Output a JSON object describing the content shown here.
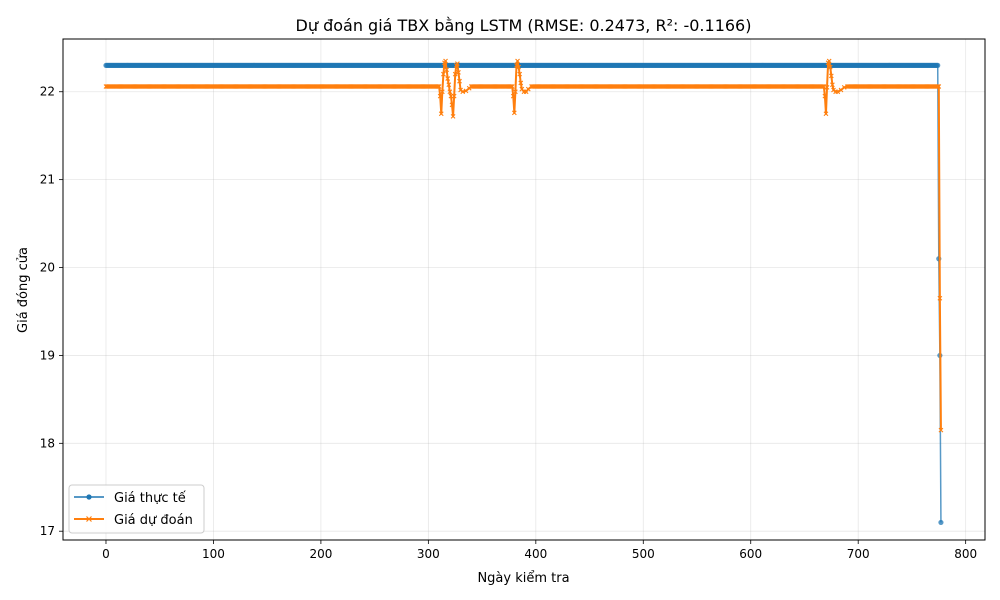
{
  "chart_data": {
    "type": "line",
    "title": "Dự đoán giá TBX bằng LSTM (RMSE: 0.2473, R²: -0.1166)",
    "xlabel": "Ngày kiểm tra",
    "ylabel": "Giá đóng cửa",
    "xlim": [
      -40,
      818
    ],
    "ylim": [
      16.9,
      22.6
    ],
    "xticks": [
      0,
      100,
      200,
      300,
      400,
      500,
      600,
      700,
      800
    ],
    "yticks": [
      17,
      18,
      19,
      20,
      21,
      22
    ],
    "grid": true,
    "legend_position": "lower-left",
    "series": [
      {
        "name": "Giá thực tế",
        "color": "#1f77b4",
        "marker": "circle",
        "segments": [
          {
            "x_start": 0,
            "x_end": 774,
            "y": 22.3
          }
        ],
        "points": [
          [
            774,
            22.3
          ],
          [
            775,
            20.1
          ],
          [
            776,
            19.0
          ],
          [
            777,
            17.1
          ]
        ]
      },
      {
        "name": "Giá dự đoán",
        "color": "#ff7f0e",
        "marker": "x",
        "segments": [
          {
            "x_start": 0,
            "x_end": 310,
            "y": 22.06
          },
          {
            "x_start": 340,
            "x_end": 378,
            "y": 22.06
          },
          {
            "x_start": 396,
            "x_end": 668,
            "y": 22.06
          },
          {
            "x_start": 690,
            "x_end": 775,
            "y": 22.06
          }
        ],
        "points": [
          [
            310,
            22.06
          ],
          [
            311,
            21.95
          ],
          [
            312,
            21.75
          ],
          [
            313,
            22.0
          ],
          [
            314,
            22.2
          ],
          [
            315,
            22.33
          ],
          [
            316,
            22.35
          ],
          [
            317,
            22.25
          ],
          [
            318,
            22.15
          ],
          [
            319,
            22.08
          ],
          [
            320,
            22.0
          ],
          [
            321,
            21.95
          ],
          [
            322,
            21.85
          ],
          [
            323,
            21.72
          ],
          [
            324,
            21.95
          ],
          [
            325,
            22.2
          ],
          [
            326,
            22.3
          ],
          [
            327,
            22.32
          ],
          [
            328,
            22.22
          ],
          [
            329,
            22.12
          ],
          [
            330,
            22.02
          ],
          [
            332,
            22.0
          ],
          [
            335,
            22.01
          ],
          [
            338,
            22.04
          ],
          [
            340,
            22.06
          ],
          [
            378,
            22.06
          ],
          [
            379,
            21.95
          ],
          [
            380,
            21.76
          ],
          [
            381,
            22.0
          ],
          [
            382,
            22.3
          ],
          [
            383,
            22.35
          ],
          [
            384,
            22.28
          ],
          [
            385,
            22.2
          ],
          [
            386,
            22.1
          ],
          [
            387,
            22.03
          ],
          [
            389,
            22.0
          ],
          [
            391,
            22.0
          ],
          [
            393,
            22.03
          ],
          [
            396,
            22.06
          ],
          [
            668,
            22.06
          ],
          [
            669,
            21.95
          ],
          [
            670,
            21.75
          ],
          [
            671,
            22.05
          ],
          [
            672,
            22.33
          ],
          [
            673,
            22.35
          ],
          [
            674,
            22.28
          ],
          [
            675,
            22.18
          ],
          [
            676,
            22.08
          ],
          [
            677,
            22.02
          ],
          [
            679,
            22.0
          ],
          [
            681,
            22.0
          ],
          [
            684,
            22.02
          ],
          [
            687,
            22.05
          ],
          [
            690,
            22.06
          ],
          [
            775,
            22.06
          ],
          [
            776,
            19.65
          ],
          [
            777,
            18.15
          ]
        ]
      }
    ]
  }
}
